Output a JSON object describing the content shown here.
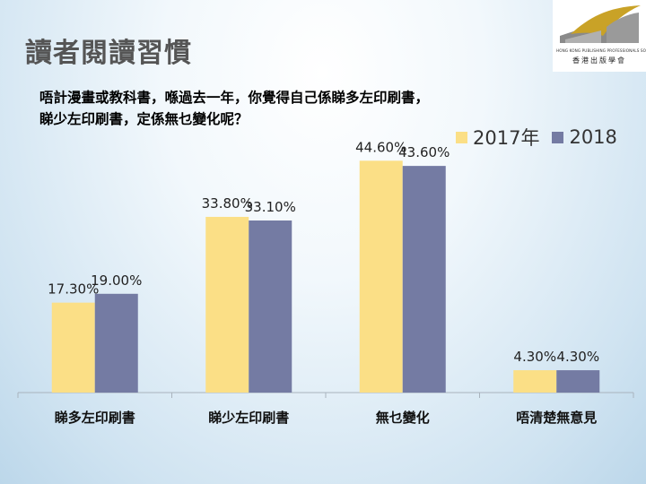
{
  "title": "讀者閱讀習慣",
  "question": {
    "line1": "唔計漫畫或教科書，喺過去一年，你覺得自己係睇多左印刷書，",
    "line2": "睇少左印刷書，定係無乜變化呢？"
  },
  "logo": {
    "org_en": "HONG KONG PUBLISHING PROFESSIONALS SOCIETY",
    "org_zh": "香港出版學會"
  },
  "colors": {
    "series_2017": "#fbdf86",
    "series_2018": "#747ba3"
  },
  "chart_data": {
    "type": "bar",
    "categories": [
      "睇多左印刷書",
      "睇少左印刷書",
      "無乜變化",
      "唔清楚無意見"
    ],
    "series": [
      {
        "name": "2017年",
        "values": [
          17.3,
          33.8,
          44.6,
          4.3
        ],
        "labels": [
          "17.30%",
          "33.80%",
          "44.60%",
          "4.30%"
        ]
      },
      {
        "name": "2018",
        "values": [
          19.0,
          33.1,
          43.6,
          4.3
        ],
        "labels": [
          "19.00%",
          "33.10%",
          "43.60%",
          "4.30%"
        ]
      }
    ],
    "ylim": [
      0,
      50
    ],
    "legend": "top-right",
    "grid": false
  }
}
